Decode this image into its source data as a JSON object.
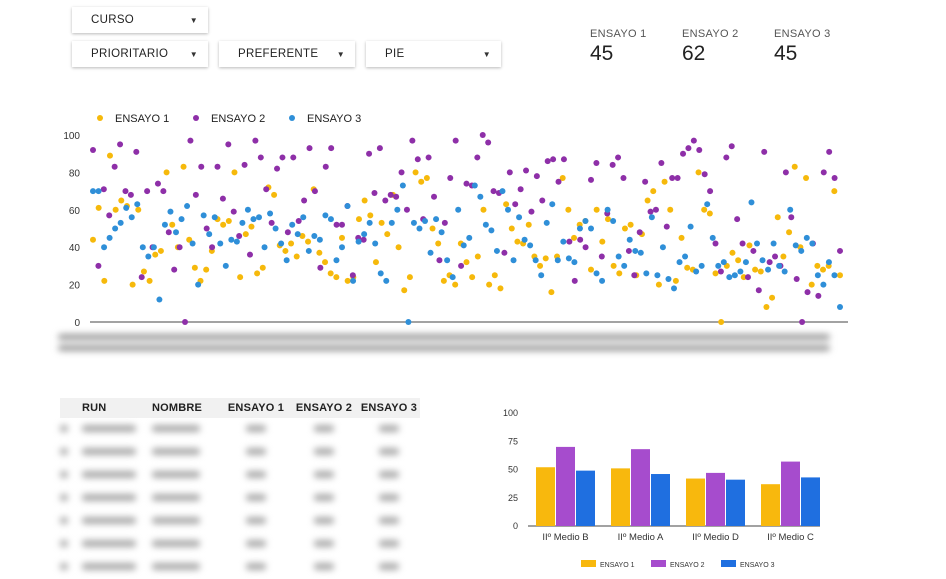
{
  "filters": {
    "curso": "CURSO",
    "prioritario": "PRIORITARIO",
    "preferente": "PREFERENTE",
    "pie": "PIE"
  },
  "scores": [
    {
      "label": "ENSAYO 1",
      "value": "45"
    },
    {
      "label": "ENSAYO 2",
      "value": "62"
    },
    {
      "label": "ENSAYO 3",
      "value": "45"
    }
  ],
  "colors": {
    "ensayo1": "#f6b90b",
    "ensayo2": "#8e2fa8",
    "ensayo3": "#2f8fd8",
    "bar3": "#1f6fe0",
    "bar2": "#a64ccd",
    "bar1": "#f8b80d"
  },
  "table": {
    "headers": [
      "RUN",
      "NOMBRE",
      "ENSAYO 1",
      "ENSAYO 2",
      "ENSAYO 3"
    ],
    "row_count": 7
  },
  "chart_data": [
    {
      "type": "scatter",
      "ylim": [
        0,
        100
      ],
      "yticks": [
        0,
        20,
        40,
        60,
        80,
        100
      ],
      "legend": "top-left",
      "series": [
        {
          "name": "ENSAYO 1",
          "values": [
            44,
            61,
            22,
            89,
            60,
            65,
            62,
            20,
            60,
            27,
            22,
            36,
            38,
            80,
            52,
            40,
            83,
            44,
            29,
            22,
            28,
            38,
            55,
            52,
            54,
            80,
            24,
            47,
            51,
            26,
            29,
            72,
            68,
            41,
            38,
            42,
            35,
            46,
            43,
            71,
            37,
            32,
            26,
            24,
            45,
            22,
            24,
            55,
            65,
            57,
            32,
            53,
            47,
            68,
            40,
            17,
            24,
            80,
            75,
            77,
            50,
            42,
            22,
            25,
            20,
            42,
            32,
            24,
            35,
            60,
            20,
            25,
            18,
            63,
            50,
            43,
            42,
            52,
            35,
            30,
            34,
            16,
            35,
            77,
            60,
            45,
            52,
            54,
            28,
            60,
            43,
            55,
            30,
            26,
            50,
            52,
            25,
            47,
            65,
            70,
            20,
            75,
            60,
            22,
            45,
            29,
            28,
            80,
            60,
            58,
            26,
            0,
            30,
            37,
            33,
            24,
            41,
            28,
            27,
            8,
            13,
            56,
            35,
            48,
            83,
            40,
            77,
            20,
            30,
            28,
            30,
            70,
            25
          ]
        },
        {
          "name": "ENSAYO 2",
          "values": [
            92,
            30,
            71,
            57,
            83,
            95,
            70,
            68,
            91,
            24,
            70,
            40,
            74,
            70,
            48,
            28,
            40,
            0,
            97,
            68,
            83,
            50,
            40,
            83,
            66,
            95,
            59,
            46,
            84,
            36,
            97,
            88,
            71,
            53,
            82,
            88,
            48,
            88,
            54,
            65,
            93,
            70,
            29,
            83,
            93,
            52,
            52,
            62,
            25,
            45,
            44,
            90,
            69,
            93,
            65,
            68,
            67,
            80,
            60,
            97,
            87,
            55,
            88,
            67,
            33,
            53,
            77,
            97,
            30,
            74,
            73,
            88,
            100,
            96,
            70,
            69,
            37,
            80,
            63,
            71,
            81,
            59,
            78,
            65,
            86,
            87,
            75,
            87,
            43,
            22,
            44,
            40,
            76,
            85,
            35,
            58,
            84,
            88,
            77,
            38,
            25,
            48,
            75,
            59,
            60,
            85,
            51,
            77,
            77,
            90,
            93,
            97,
            92,
            79,
            70,
            42,
            27,
            88,
            94,
            55,
            42,
            24,
            38,
            17,
            91,
            32,
            35,
            30,
            80,
            56,
            23,
            0,
            16,
            42,
            14,
            80,
            91,
            77,
            38
          ]
        },
        {
          "name": "ENSAYO 3",
          "values": [
            70,
            70,
            40,
            45,
            50,
            53,
            61,
            56,
            63,
            40,
            35,
            40,
            12,
            52,
            59,
            48,
            55,
            62,
            42,
            20,
            57,
            47,
            56,
            42,
            30,
            44,
            43,
            53,
            60,
            55,
            56,
            40,
            58,
            50,
            42,
            33,
            52,
            47,
            56,
            38,
            46,
            44,
            57,
            55,
            33,
            40,
            62,
            22,
            43,
            47,
            53,
            42,
            26,
            22,
            53,
            60,
            73,
            0,
            53,
            50,
            54,
            37,
            55,
            48,
            33,
            24,
            60,
            41,
            45,
            73,
            67,
            52,
            49,
            38,
            70,
            60,
            33,
            56,
            44,
            41,
            33,
            25,
            53,
            63,
            33,
            43,
            34,
            32,
            50,
            54,
            50,
            26,
            22,
            60,
            54,
            35,
            30,
            44,
            38,
            37,
            26,
            56,
            25,
            40,
            23,
            18,
            32,
            35,
            51,
            27,
            30,
            63,
            45,
            30,
            32,
            24,
            25,
            27,
            32,
            64,
            42,
            33,
            28,
            42,
            30,
            27,
            60,
            41,
            38,
            45,
            42,
            25,
            20,
            32,
            25,
            8
          ]
        }
      ]
    },
    {
      "type": "bar",
      "categories": [
        "IIº Medio B",
        "IIº Medio A",
        "IIº Medio D",
        "IIº Medio C"
      ],
      "ylim": [
        0,
        100
      ],
      "yticks": [
        0,
        25,
        50,
        75,
        100
      ],
      "legend": "bottom",
      "series": [
        {
          "name": "ENSAYO 1",
          "values": [
            52,
            51,
            42,
            37
          ]
        },
        {
          "name": "ENSAYO 2",
          "values": [
            70,
            68,
            47,
            57
          ]
        },
        {
          "name": "ENSAYO 3",
          "values": [
            49,
            46,
            41,
            43
          ]
        }
      ]
    }
  ]
}
